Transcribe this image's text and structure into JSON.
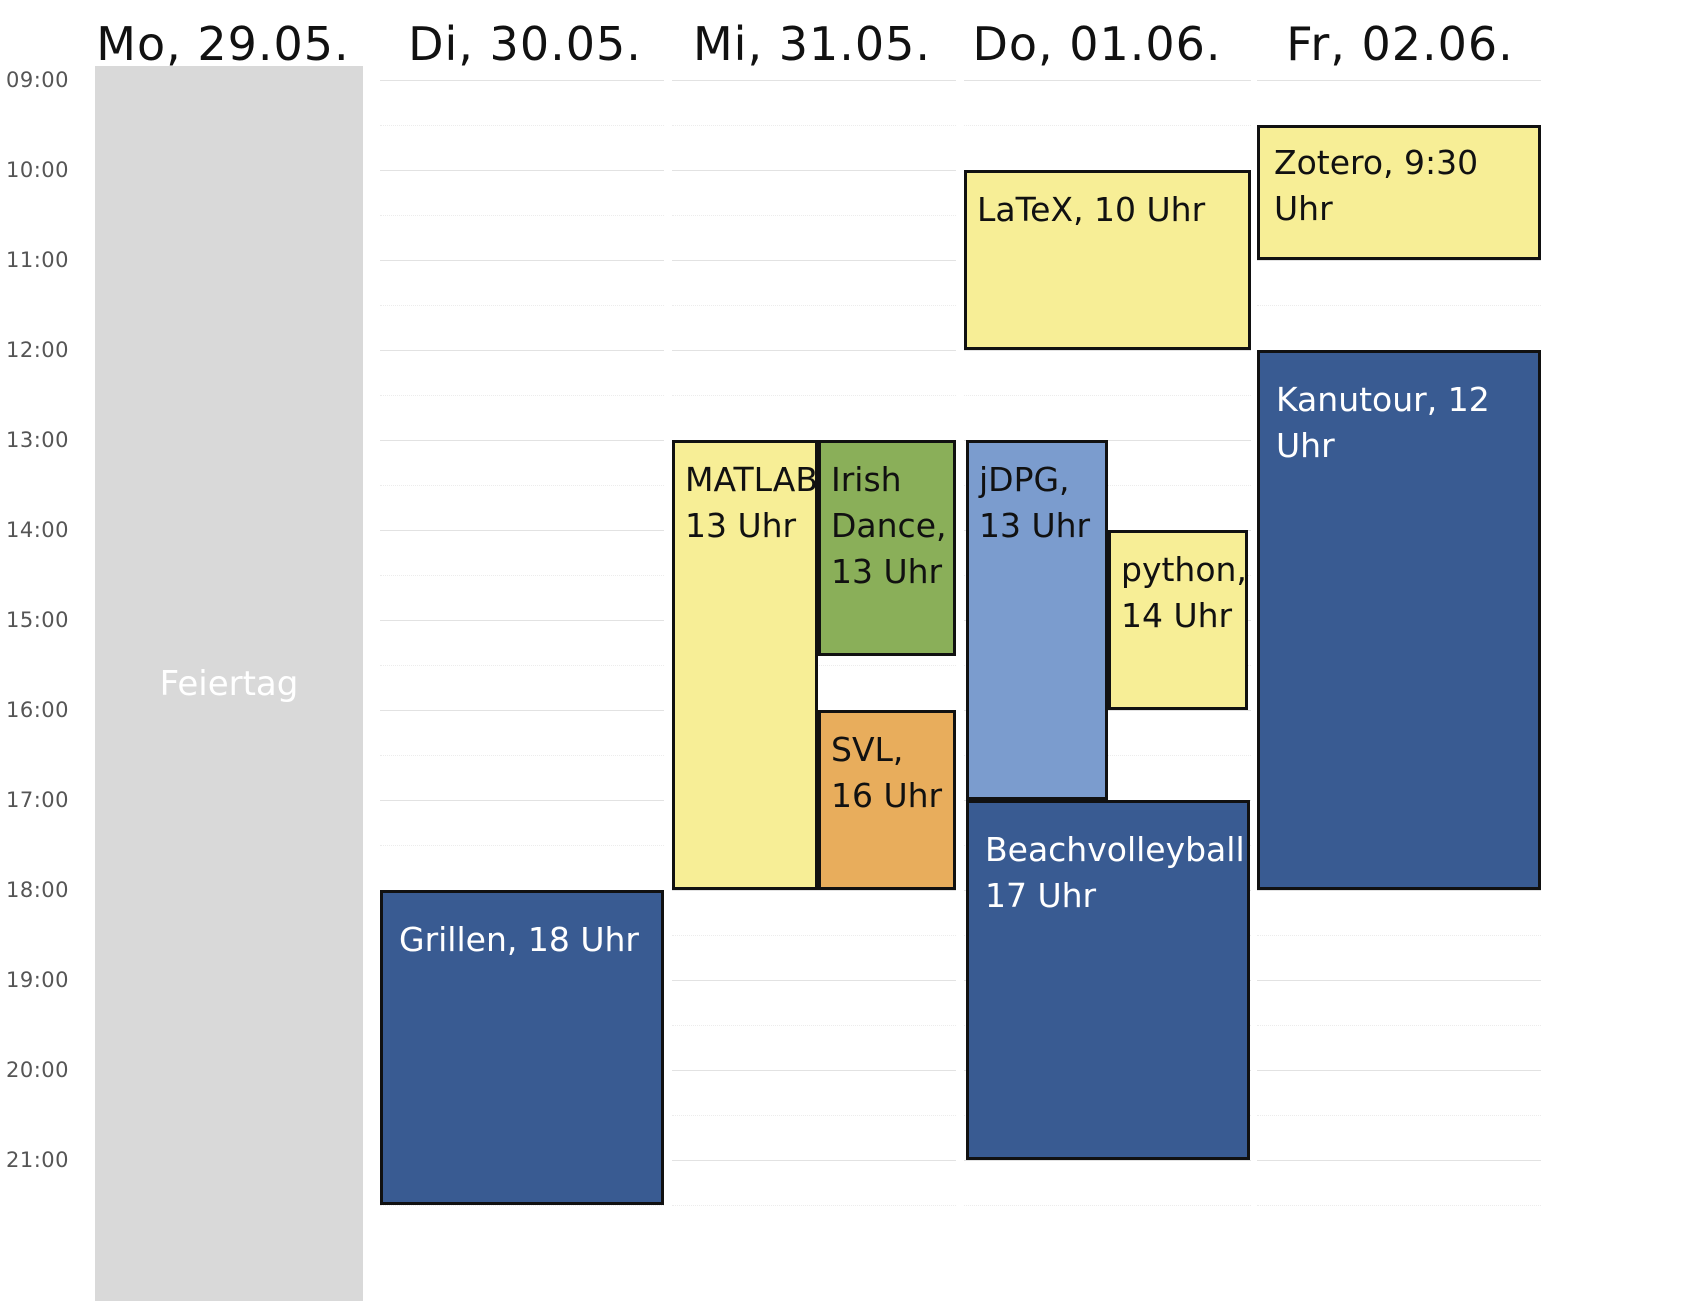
{
  "days": [
    {
      "label": "Mo, 29.05."
    },
    {
      "label": "Di, 30.05."
    },
    {
      "label": "Mi, 31.05."
    },
    {
      "label": "Do, 01.06."
    },
    {
      "label": "Fr, 02.06."
    }
  ],
  "times": [
    "09:00",
    "10:00",
    "11:00",
    "12:00",
    "13:00",
    "14:00",
    "15:00",
    "16:00",
    "17:00",
    "18:00",
    "19:00",
    "20:00",
    "21:00"
  ],
  "holiday": {
    "day": 0,
    "label": "Feiertag",
    "color": "#d9d9d9"
  },
  "colors": {
    "yellow": "#f7ee96",
    "green": "#8aaf59",
    "orange": "#e8ad5c",
    "light_blue": "#7b9cce",
    "dark_blue": "#395b92"
  },
  "events": [
    {
      "id": "grillen",
      "day": 1,
      "start": 18,
      "end": 21.5,
      "label": "Grillen, 18 Uhr",
      "color": "dark_blue"
    },
    {
      "id": "matlab",
      "day": 2,
      "start": 13,
      "end": 18,
      "label": "MATLAB,\n13 Uhr",
      "color": "yellow"
    },
    {
      "id": "irish-dance",
      "day": 2,
      "start": 13,
      "end": 15.4,
      "label": "Irish\nDance,\n13 Uhr",
      "color": "green"
    },
    {
      "id": "svl",
      "day": 2,
      "start": 16,
      "end": 18,
      "label": "SVL,\n16 Uhr",
      "color": "orange"
    },
    {
      "id": "latex",
      "day": 3,
      "start": 10,
      "end": 12,
      "label": "LaTeX, 10 Uhr",
      "color": "yellow"
    },
    {
      "id": "jdpg",
      "day": 3,
      "start": 13,
      "end": 17,
      "label": "jDPG,\n13 Uhr",
      "color": "light_blue"
    },
    {
      "id": "python",
      "day": 3,
      "start": 14,
      "end": 16,
      "label": "python,\n14 Uhr",
      "color": "yellow"
    },
    {
      "id": "beachvolleyball",
      "day": 3,
      "start": 17,
      "end": 21,
      "label": "Beachvolleyball,\n17 Uhr",
      "color": "dark_blue"
    },
    {
      "id": "zotero",
      "day": 4,
      "start": 9.5,
      "end": 11,
      "label": "Zotero, 9:30 Uhr",
      "color": "yellow"
    },
    {
      "id": "kanutour",
      "day": 4,
      "start": 12,
      "end": 18,
      "label": "Kanutour, 12 Uhr",
      "color": "dark_blue"
    }
  ]
}
